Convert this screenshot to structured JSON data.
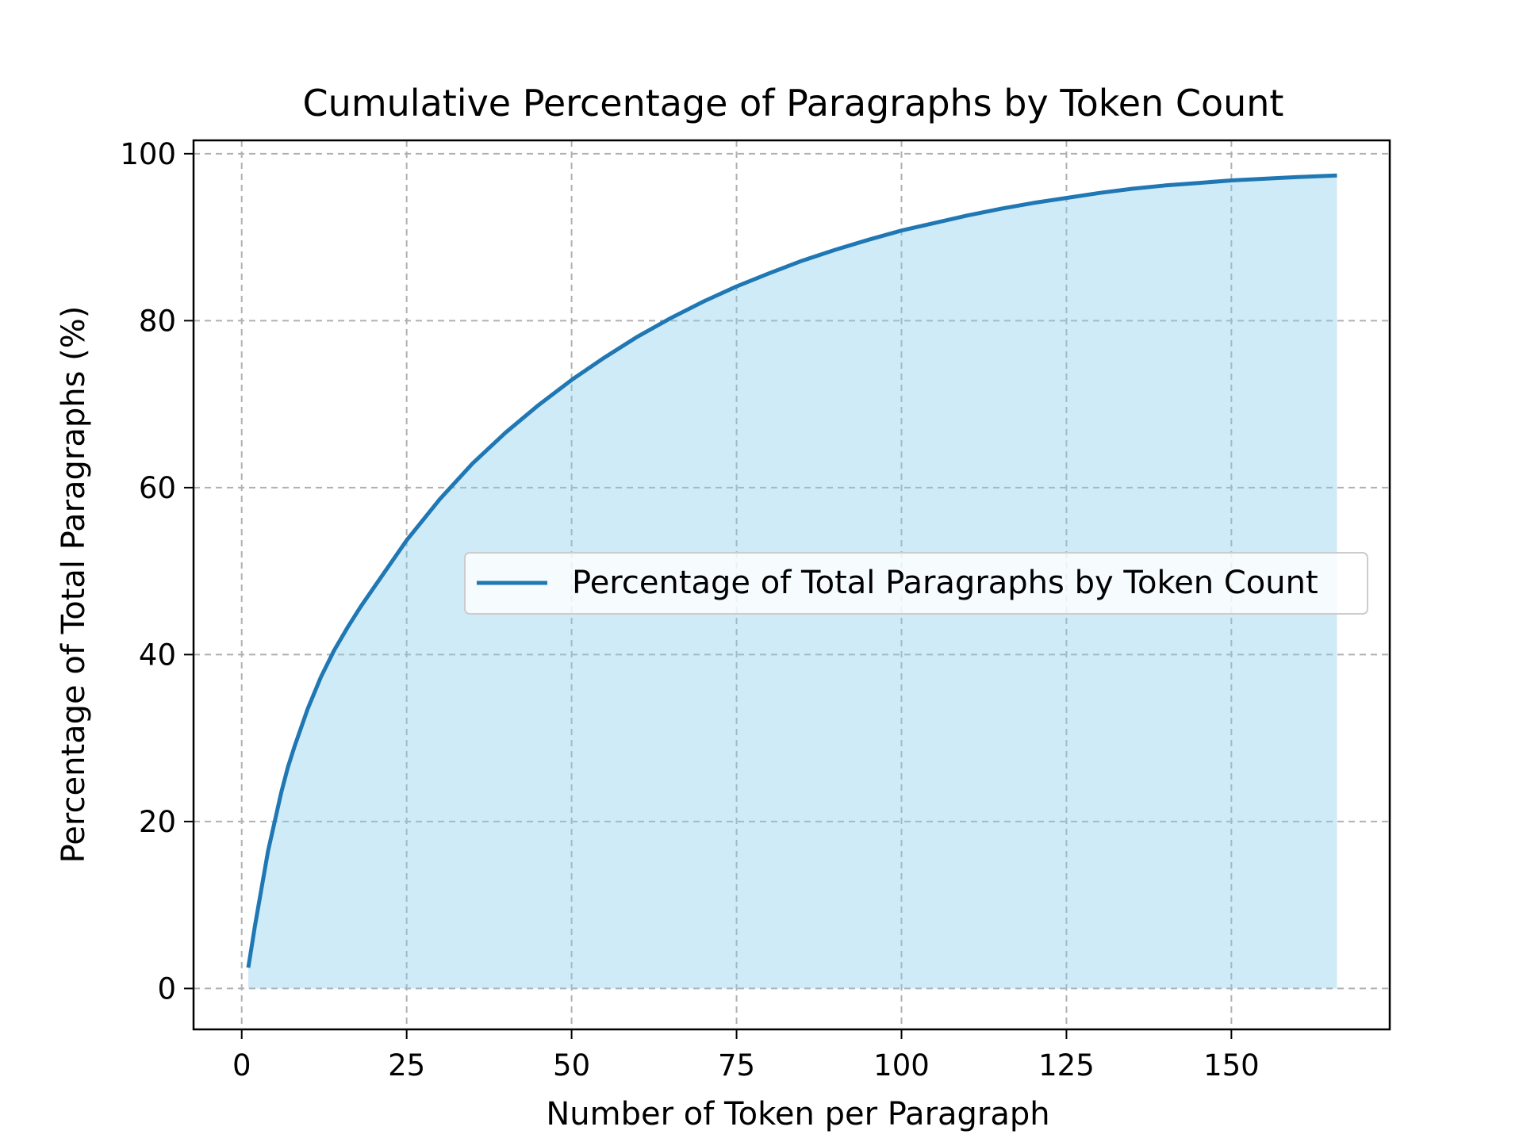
{
  "chart_data": {
    "type": "area",
    "title": "Cumulative Percentage of Paragraphs by Token Count",
    "xlabel": "Number of Token per Paragraph",
    "ylabel": "Percentage of Total Paragraphs (%)",
    "xlim": [
      -7.3,
      174
    ],
    "ylim": [
      -4.9,
      101.6
    ],
    "x_ticks": [
      0,
      25,
      50,
      75,
      100,
      125,
      150
    ],
    "y_ticks": [
      0,
      20,
      40,
      60,
      80,
      100
    ],
    "grid": true,
    "legend_position": "center-right",
    "series": [
      {
        "name": "Percentage of Total Paragraphs by Token Count",
        "line_color": "#1f77b4",
        "fill_color": "#87ceeb",
        "x": [
          1,
          2,
          3,
          4,
          5,
          6,
          7,
          8,
          10,
          12,
          14,
          16,
          18,
          20,
          25,
          30,
          35,
          40,
          45,
          50,
          55,
          60,
          65,
          70,
          75,
          80,
          85,
          90,
          95,
          100,
          105,
          110,
          115,
          120,
          125,
          130,
          135,
          140,
          145,
          150,
          155,
          160,
          166
        ],
        "y": [
          2.5,
          7.5,
          12,
          16.5,
          20,
          23.5,
          26.5,
          29,
          33.5,
          37.3,
          40.5,
          43.2,
          45.7,
          48,
          53.7,
          58.6,
          62.9,
          66.6,
          69.9,
          72.9,
          75.6,
          78.1,
          80.3,
          82.3,
          84.1,
          85.7,
          87.2,
          88.5,
          89.7,
          90.8,
          91.7,
          92.6,
          93.4,
          94.1,
          94.7,
          95.3,
          95.8,
          96.2,
          96.5,
          96.8,
          97.0,
          97.2,
          97.4
        ]
      }
    ]
  }
}
